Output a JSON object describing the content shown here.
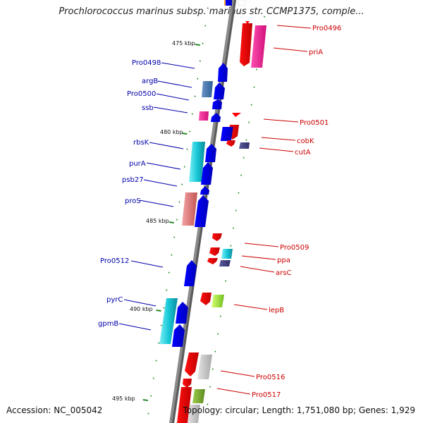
{
  "header": {
    "title": "Prochlorococcus marinus subsp. marinus str. CCMP1375, comple..."
  },
  "footer": {
    "accession": "Accession: NC_005042",
    "summary": "Topology: circular; Length: 1,751,080 bp; Genes: 1,929"
  },
  "colors": {
    "forward_label": "#0000aa",
    "reverse_label": "#cc0000",
    "tick": "#2a8a2a",
    "backbone": "#7a7a7a"
  },
  "scale_labels": [
    "475 kbp",
    "480 kbp",
    "485 kbp",
    "490 kbp",
    "495 kbp"
  ],
  "forward_labels": [
    "Pro0498",
    "argB",
    "Pro0500",
    "ssb",
    "rbsK",
    "purA",
    "psb27",
    "proS",
    "Pro0512",
    "pyrC",
    "gpmB"
  ],
  "reverse_labels": [
    "Pro0496",
    "priA",
    "Pro0501",
    "cobK",
    "cutA",
    "Pro0509",
    "ppa",
    "arsC",
    "lepB",
    "Pro0516",
    "Pro0517"
  ]
}
